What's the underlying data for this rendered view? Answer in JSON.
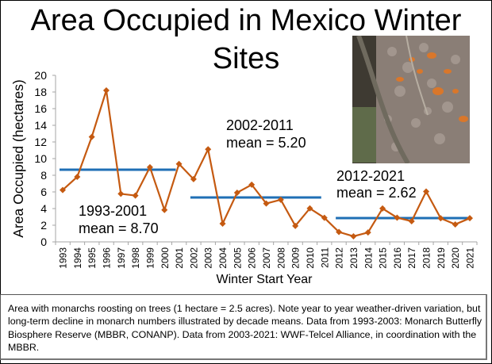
{
  "title": "Area Occupied in Mexico Winter Sites",
  "photo": {
    "icon": "monarch-butterflies-photo"
  },
  "chart_data": {
    "type": "line",
    "title": "Area Occupied in Mexico Winter Sites",
    "xlabel": "Winter Start Year",
    "ylabel": "Area Occupied (hectares)",
    "ylim": [
      0,
      20
    ],
    "yticks": [
      "0",
      "2",
      "4",
      "6",
      "8",
      "10",
      "12",
      "14",
      "16",
      "18",
      "20"
    ],
    "categories": [
      "1993",
      "1994",
      "1995",
      "1996",
      "1997",
      "1998",
      "1999",
      "2000",
      "2001",
      "2002",
      "2003",
      "2004",
      "2005",
      "2006",
      "2007",
      "2008",
      "2009",
      "2010",
      "2011",
      "2012",
      "2013",
      "2014",
      "2015",
      "2016",
      "2017",
      "2018",
      "2019",
      "2020",
      "2021"
    ],
    "series": [
      {
        "name": "Area Occupied",
        "color": "#c55a11",
        "values": [
          6.23,
          7.81,
          12.61,
          18.19,
          5.77,
          5.56,
          8.97,
          3.83,
          9.36,
          7.54,
          11.12,
          2.19,
          5.91,
          6.87,
          4.61,
          5.06,
          1.92,
          4.02,
          2.89,
          1.19,
          0.67,
          1.13,
          4.01,
          2.91,
          2.48,
          6.05,
          2.83,
          2.1,
          2.84
        ]
      }
    ],
    "means": [
      {
        "start": "1993",
        "end": "2001",
        "value": 8.7,
        "label_line1": "1993-2001",
        "label_line2": "mean = 8.70",
        "color": "#1f6fb5"
      },
      {
        "start": "2002",
        "end": "2011",
        "value": 5.2,
        "label_line1": "2002-2011",
        "label_line2": "mean = 5.20",
        "color": "#1f6fb5"
      },
      {
        "start": "2012",
        "end": "2021",
        "value": 2.62,
        "label_line1": "2012-2021",
        "label_line2": "mean = 2.62",
        "color": "#1f6fb5"
      }
    ],
    "grid": false
  },
  "caption": "Area with monarchs roosting on trees (1 hectare = 2.5 acres). Note year to year weather-driven variation, but long-term decline in monarch numbers illustrated by decade means. Data from 1993-2003: Monarch Butterfly Biosphere Reserve (MBBR, CONANP). Data from 2003-2021: WWF-Telcel Alliance, in coordination with the MBBR."
}
